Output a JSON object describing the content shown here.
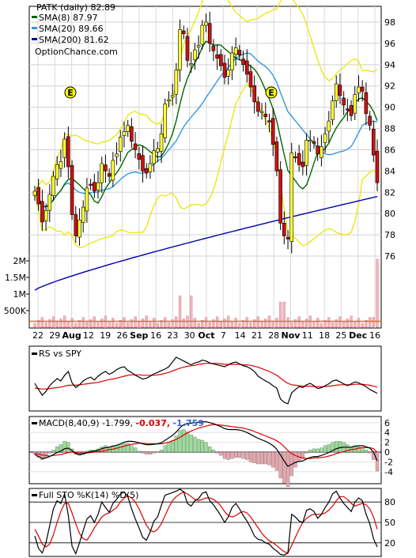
{
  "colors": {
    "up_candle": "#ffff33",
    "down_candle": "#cc1111",
    "sma8": "#006600",
    "sma20": "#3399dd",
    "sma200": "#0000aa",
    "bollinger": "#e8e800",
    "rs": "#000000",
    "rs_ma": "#dd0000",
    "macd_line": "#000000",
    "signal_line": "#dd0000",
    "hist_pos": "#99dd99",
    "hist_neg": "#e8a6ae",
    "earnings": "#ffff00",
    "volume": "#f3b3bd",
    "volume_avg": "#e07020"
  },
  "legend": {
    "title": "PATK (daily) 82.89",
    "sma8": "SMA(8) 87.97",
    "sma20": "SMA(20) 89.66",
    "sma200": "SMA(200) 81.62",
    "site": "OptionChance.com"
  },
  "rs_label": "RS vs SPY",
  "macd_label": {
    "main": "MACD(8,40,9) -1.799,",
    "signal": "-0.037,",
    "hist": "-1.759"
  },
  "sto_label": "Full STO %K(14) %D(5)",
  "earnings_marker": "E",
  "chart_data": {
    "type": "candlestick",
    "symbol": "PATK",
    "period": "daily",
    "last_close": 82.89,
    "indicators": {
      "sma8": 87.97,
      "sma20": 89.66,
      "sma200": 81.62
    },
    "x_ticks": [
      "22",
      "29",
      "Aug",
      "12",
      "19",
      "26",
      "Sep",
      "16",
      "23",
      "30",
      "Oct",
      "7",
      "14",
      "21",
      "28",
      "Nov",
      "11",
      "18",
      "25",
      "Dec",
      "16"
    ],
    "x_tick_bold": [
      false,
      false,
      true,
      false,
      false,
      false,
      true,
      false,
      false,
      false,
      true,
      false,
      false,
      false,
      false,
      true,
      false,
      false,
      false,
      true,
      false
    ],
    "y_ticks": [
      76,
      78,
      80,
      82,
      84,
      86,
      88,
      90,
      92,
      94,
      96,
      98
    ],
    "ylim": [
      74.5,
      99.5
    ],
    "volume_ticks": [
      "2M",
      "1.5M",
      "1M",
      "500K"
    ],
    "volume_tick_values": [
      2000000,
      1500000,
      1000000,
      500000
    ],
    "rs_ticks": [],
    "macd_ticks": [
      6,
      4,
      2,
      0,
      -2,
      -4
    ],
    "sto_ticks": [
      80,
      50,
      20
    ],
    "series": [
      {
        "name": "PATK",
        "close": [
          82.1,
          80.9,
          79.2,
          80.3,
          81.8,
          83.5,
          84.6,
          84.9,
          87.0,
          84.4,
          79.9,
          77.9,
          79.4,
          80.6,
          82.4,
          82.7,
          82.1,
          82.9,
          84.7,
          84.0,
          83.5,
          85.0,
          85.6,
          87.2,
          87.7,
          88.3,
          86.8,
          86.0,
          85.1,
          84.0,
          83.8,
          84.7,
          85.9,
          86.1,
          87.5,
          90.3,
          90.7,
          91.1,
          93.5,
          97.3,
          96.9,
          94.4,
          94.1,
          95.4,
          95.8,
          97.7,
          98.0,
          96.0,
          95.3,
          94.6,
          93.9,
          92.8,
          93.5,
          95.1,
          95.6,
          94.9,
          94.0,
          93.1,
          91.9,
          90.5,
          89.6,
          89.6,
          89.1,
          88.6,
          86.5,
          84.0,
          79.1,
          77.9,
          77.6,
          85.7,
          85.3,
          84.6,
          84.4,
          86.9,
          86.9,
          86.6,
          85.6,
          86.3,
          87.5,
          88.7,
          90.6,
          92.2,
          91.1,
          90.2,
          89.8,
          89.2,
          91.2,
          91.9,
          91.5,
          89.4,
          88.3,
          85.5,
          82.9
        ]
      }
    ],
    "earnings": [
      "Jul 29",
      "Oct 25"
    ],
    "volume_avg_level": 180000,
    "rs": [
      0.45,
      0.32,
      0.2,
      0.28,
      0.4,
      0.48,
      0.55,
      0.5,
      0.62,
      0.7,
      0.46,
      0.36,
      0.42,
      0.5,
      0.55,
      0.58,
      0.52,
      0.6,
      0.66,
      0.7,
      0.64,
      0.68,
      0.74,
      0.78,
      0.8,
      0.72,
      0.68,
      0.62,
      0.58,
      0.54,
      0.56,
      0.6,
      0.65,
      0.68,
      0.72,
      0.75,
      0.8,
      0.9,
      1.0,
      0.96,
      0.92,
      0.88,
      0.84,
      0.88,
      0.9,
      0.94,
      0.92,
      0.88,
      0.86,
      0.84,
      0.82,
      0.8,
      0.84,
      0.88,
      0.9,
      0.86,
      0.82,
      0.8,
      0.76,
      0.7,
      0.6,
      0.55,
      0.5,
      0.46,
      0.4,
      0.35,
      0.12,
      0.05,
      0.02,
      0.25,
      0.32,
      0.38,
      0.36,
      0.42,
      0.45,
      0.4,
      0.34,
      0.36,
      0.4,
      0.44,
      0.5,
      0.52,
      0.48,
      0.44,
      0.4,
      0.44,
      0.48,
      0.46,
      0.42,
      0.38,
      0.32,
      0.28,
      0.24
    ],
    "rs_ma": [
      0.35,
      0.34,
      0.33,
      0.33,
      0.34,
      0.35,
      0.36,
      0.37,
      0.39,
      0.41,
      0.41,
      0.41,
      0.42,
      0.43,
      0.44,
      0.45,
      0.46,
      0.47,
      0.49,
      0.51,
      0.53,
      0.54,
      0.56,
      0.58,
      0.6,
      0.62,
      0.63,
      0.63,
      0.63,
      0.62,
      0.62,
      0.62,
      0.62,
      0.63,
      0.64,
      0.66,
      0.68,
      0.71,
      0.74,
      0.77,
      0.79,
      0.81,
      0.82,
      0.83,
      0.85,
      0.86,
      0.87,
      0.87,
      0.87,
      0.87,
      0.86,
      0.85,
      0.85,
      0.85,
      0.85,
      0.85,
      0.84,
      0.84,
      0.83,
      0.81,
      0.79,
      0.76,
      0.73,
      0.7,
      0.66,
      0.62,
      0.56,
      0.5,
      0.45,
      0.42,
      0.41,
      0.4,
      0.39,
      0.39,
      0.39,
      0.38,
      0.38,
      0.38,
      0.38,
      0.39,
      0.4,
      0.41,
      0.42,
      0.42,
      0.42,
      0.42,
      0.43,
      0.43,
      0.43,
      0.42,
      0.41,
      0.39,
      0.37
    ],
    "macd": [
      -0.5,
      -0.9,
      -1.3,
      -1.2,
      -0.9,
      -0.5,
      -0.1,
      0.2,
      0.7,
      0.8,
      0.3,
      -0.3,
      -0.5,
      -0.4,
      -0.1,
      0.1,
      0.2,
      0.4,
      0.7,
      0.9,
      1.0,
      1.2,
      1.4,
      1.7,
      2.0,
      2.2,
      2.2,
      2.1,
      1.9,
      1.7,
      1.5,
      1.5,
      1.6,
      1.7,
      1.9,
      2.4,
      2.9,
      3.4,
      4.1,
      5.0,
      5.6,
      5.8,
      5.9,
      6.0,
      6.1,
      6.2,
      6.2,
      6.0,
      5.8,
      5.5,
      5.2,
      4.8,
      4.6,
      4.6,
      4.6,
      4.5,
      4.3,
      4.0,
      3.6,
      3.2,
      2.8,
      2.5,
      2.2,
      1.8,
      1.3,
      0.6,
      -0.6,
      -1.8,
      -2.9,
      -2.5,
      -2.1,
      -1.9,
      -1.8,
      -1.4,
      -1.1,
      -0.9,
      -0.9,
      -0.7,
      -0.4,
      -0.1,
      0.3,
      0.7,
      0.9,
      1.0,
      1.0,
      1.0,
      1.2,
      1.3,
      1.3,
      1.1,
      0.8,
      0.0,
      -1.8
    ],
    "macd_signal": [
      -0.3,
      -0.4,
      -0.6,
      -0.7,
      -0.8,
      -0.7,
      -0.6,
      -0.5,
      -0.3,
      -0.1,
      0.0,
      -0.1,
      -0.2,
      -0.2,
      -0.2,
      -0.1,
      0.0,
      0.1,
      0.2,
      0.3,
      0.5,
      0.6,
      0.8,
      1.0,
      1.2,
      1.4,
      1.6,
      1.7,
      1.8,
      1.8,
      1.7,
      1.7,
      1.7,
      1.7,
      1.7,
      1.8,
      2.0,
      2.3,
      2.6,
      3.0,
      3.5,
      3.9,
      4.3,
      4.6,
      4.9,
      5.1,
      5.3,
      5.5,
      5.6,
      5.6,
      5.5,
      5.4,
      5.3,
      5.2,
      5.1,
      5.0,
      4.9,
      4.7,
      4.5,
      4.2,
      3.9,
      3.6,
      3.3,
      3.0,
      2.7,
      2.3,
      1.8,
      1.1,
      0.3,
      -0.3,
      -0.7,
      -1.0,
      -1.2,
      -1.3,
      -1.3,
      -1.2,
      -1.2,
      -1.1,
      -1.0,
      -0.8,
      -0.6,
      -0.3,
      -0.1,
      0.1,
      0.3,
      0.5,
      0.6,
      0.8,
      0.9,
      0.9,
      0.9,
      0.7,
      -0.04
    ],
    "sto_k": [
      30,
      12,
      5,
      20,
      45,
      70,
      82,
      78,
      92,
      60,
      15,
      4,
      20,
      38,
      55,
      60,
      50,
      62,
      80,
      72,
      65,
      78,
      84,
      92,
      95,
      88,
      70,
      55,
      42,
      28,
      24,
      36,
      52,
      58,
      75,
      90,
      92,
      94,
      96,
      99,
      95,
      78,
      74,
      82,
      85,
      93,
      95,
      82,
      76,
      68,
      60,
      50,
      58,
      72,
      78,
      70,
      60,
      52,
      42,
      30,
      25,
      24,
      20,
      18,
      12,
      8,
      3,
      2,
      5,
      62,
      58,
      52,
      50,
      68,
      70,
      66,
      56,
      62,
      72,
      80,
      92,
      96,
      86,
      78,
      72,
      66,
      80,
      86,
      82,
      62,
      48,
      26,
      14
    ],
    "sto_d": [
      40,
      30,
      18,
      14,
      18,
      32,
      50,
      66,
      78,
      78,
      64,
      48,
      34,
      26,
      24,
      32,
      42,
      50,
      58,
      62,
      64,
      68,
      72,
      80,
      86,
      89,
      86,
      80,
      70,
      58,
      46,
      38,
      36,
      40,
      48,
      60,
      72,
      82,
      88,
      92,
      95,
      92,
      88,
      84,
      82,
      84,
      86,
      86,
      84,
      80,
      74,
      66,
      60,
      58,
      60,
      64,
      66,
      64,
      58,
      50,
      42,
      34,
      28,
      23,
      20,
      16,
      11,
      7,
      5,
      16,
      28,
      40,
      50,
      56,
      60,
      62,
      62,
      62,
      64,
      68,
      74,
      82,
      88,
      88,
      84,
      78,
      74,
      76,
      78,
      76,
      70,
      58,
      40
    ]
  }
}
